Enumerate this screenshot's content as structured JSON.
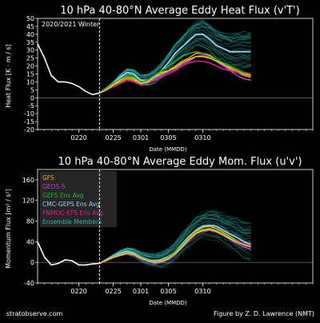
{
  "footer": {
    "left": "stratobserve.com",
    "right": "Figure by Z. D. Lawrence (NMT)"
  },
  "colors": {
    "background": "#000000",
    "axis": "#ffffff",
    "gfs": "#f5a623",
    "geos": "#c040e0",
    "gefs": "#2bb52b",
    "cmc": "#9ad0ec",
    "fnmoc": "#e0208a",
    "ensemble": "#2fb0a8",
    "gfs_ens_line": "#e8d020",
    "analysis": "#ffffff",
    "legend_bg": "#2a2a2a"
  },
  "chart_data": [
    {
      "type": "line",
      "title": "10 hPa  40-80°N  Average Eddy Heat Flux (v'T')",
      "annotation": "2020/2021 Winter",
      "xlabel": "Date (MMDD)",
      "ylabel": "Heat Flux  [K · m / s]",
      "xlim": [
        -6,
        34
      ],
      "ylim": [
        -20,
        50
      ],
      "yticks": [
        -20,
        -15,
        -10,
        -5,
        0,
        5,
        10,
        15,
        20,
        25,
        30,
        35,
        40,
        45,
        50
      ],
      "xticks": [
        {
          "x": 0,
          "label": "0220"
        },
        {
          "x": 5,
          "label": "0225"
        },
        {
          "x": 9,
          "label": "0301"
        },
        {
          "x": 13,
          "label": "0305"
        },
        {
          "x": 18,
          "label": "0310"
        }
      ],
      "forecast_start": 3,
      "analysis": {
        "x": [
          -6,
          -5,
          -4,
          -3,
          -2,
          -1,
          0,
          1,
          2,
          3
        ],
        "y": [
          34,
          25,
          14,
          10,
          10,
          9,
          7,
          4,
          2,
          3
        ]
      },
      "series": [
        {
          "key": "cmc",
          "x": [
            3,
            4,
            5,
            6,
            7,
            8,
            9,
            10,
            11,
            12,
            13,
            14,
            15,
            16,
            17,
            18,
            19,
            20,
            21,
            22,
            23,
            24,
            25
          ],
          "y": [
            3,
            6,
            9,
            13,
            16,
            15,
            11,
            11,
            13,
            17,
            22,
            28,
            32,
            36,
            40,
            40,
            37,
            33,
            31,
            29,
            29,
            29,
            29
          ]
        },
        {
          "key": "gfs",
          "x": [
            3,
            4,
            5,
            6,
            7,
            8,
            9,
            10,
            11,
            12,
            13,
            14,
            15,
            16,
            17,
            18,
            19,
            20,
            21,
            22,
            23,
            24,
            25
          ],
          "y": [
            3,
            5,
            8,
            10,
            12,
            11,
            9,
            10,
            14,
            16,
            17,
            20,
            23,
            25,
            28,
            28,
            27,
            24,
            21,
            18,
            16,
            14,
            13
          ]
        },
        {
          "key": "geos",
          "x": [
            3,
            4,
            5,
            6,
            7,
            8,
            9,
            10,
            11,
            12,
            13,
            14,
            15,
            16,
            17,
            18,
            19,
            20,
            21,
            22,
            23,
            24,
            25
          ],
          "y": [
            3,
            5,
            7,
            9,
            11,
            10,
            8,
            9,
            12,
            14,
            16,
            18,
            21,
            23,
            26,
            27,
            25,
            23,
            20,
            17,
            14,
            12,
            11
          ]
        },
        {
          "key": "gefs",
          "x": [
            3,
            4,
            5,
            6,
            7,
            8,
            9,
            10,
            11,
            12,
            13,
            14,
            15,
            16,
            17,
            18,
            19,
            20,
            21,
            22,
            23,
            24,
            25
          ],
          "y": [
            3,
            6,
            9,
            12,
            14,
            13,
            10,
            11,
            14,
            17,
            20,
            23,
            26,
            28,
            29,
            28,
            26,
            24,
            22,
            20,
            18,
            16,
            15
          ]
        },
        {
          "key": "fnmoc",
          "x": [
            3,
            4,
            5,
            6,
            7,
            8,
            9,
            10,
            11,
            12,
            13,
            14,
            15,
            16,
            17,
            18,
            19,
            20,
            21,
            22,
            23,
            24,
            25
          ],
          "y": [
            3,
            5,
            7,
            9,
            11,
            10,
            8,
            9,
            11,
            13,
            15,
            17,
            20,
            22,
            23,
            23,
            22,
            20,
            18,
            17,
            16,
            15,
            15
          ]
        },
        {
          "key": "gfs_ens_line",
          "x": [
            3,
            4,
            5,
            6,
            7,
            8,
            9,
            10,
            11,
            12,
            13,
            14,
            15,
            16,
            17,
            18,
            19,
            20,
            21,
            22,
            23,
            24,
            25
          ],
          "y": [
            3,
            5,
            8,
            11,
            13,
            12,
            9,
            10,
            13,
            15,
            17,
            19,
            22,
            24,
            26,
            26,
            25,
            23,
            21,
            19,
            17,
            15,
            14
          ]
        }
      ]
    },
    {
      "type": "line",
      "title": "10 hPa  40-80°N  Average Eddy Mom. Flux (u'v')",
      "xlabel": "Date (MMDD)",
      "ylabel": "Momentum Flux  [m² / s²]",
      "xlim": [
        -6,
        34
      ],
      "ylim": [
        -40,
        180
      ],
      "yticks": [
        -40,
        0,
        40,
        80,
        120,
        160
      ],
      "xticks": [
        {
          "x": 0,
          "label": "0220"
        },
        {
          "x": 5,
          "label": "0225"
        },
        {
          "x": 9,
          "label": "0301"
        },
        {
          "x": 13,
          "label": "0305"
        },
        {
          "x": 18,
          "label": "0310"
        }
      ],
      "forecast_start": 3,
      "legend": [
        {
          "key": "gfs",
          "label": "GFS"
        },
        {
          "key": "geos",
          "label": "GEOS-5"
        },
        {
          "key": "gefs",
          "label": "GEFS Ens Avg"
        },
        {
          "key": "cmc",
          "label": "CMC-GEPS Ens Avg"
        },
        {
          "key": "fnmoc",
          "label": "FNMOC-EFS Ens Avg"
        },
        {
          "key": "ensemble",
          "label": "Ensemble Members"
        }
      ],
      "analysis": {
        "x": [
          -6,
          -5,
          -4,
          -3,
          -2,
          -1,
          0,
          1,
          2,
          3
        ],
        "y": [
          40,
          10,
          -5,
          -2,
          5,
          3,
          -5,
          -5,
          -3,
          -2
        ]
      },
      "series": [
        {
          "key": "cmc",
          "x": [
            3,
            4,
            5,
            6,
            7,
            8,
            9,
            10,
            11,
            12,
            13,
            14,
            15,
            16,
            17,
            18,
            19,
            20,
            21,
            22,
            23,
            24,
            25
          ],
          "y": [
            -2,
            5,
            12,
            18,
            22,
            18,
            10,
            5,
            3,
            5,
            10,
            20,
            35,
            50,
            62,
            70,
            72,
            70,
            62,
            55,
            48,
            40,
            35
          ]
        },
        {
          "key": "gfs",
          "x": [
            3,
            4,
            5,
            6,
            7,
            8,
            9,
            10,
            11,
            12,
            13,
            14,
            15,
            16,
            17,
            18,
            19,
            20,
            21,
            22,
            23,
            24,
            25
          ],
          "y": [
            -2,
            4,
            10,
            14,
            18,
            15,
            8,
            3,
            0,
            2,
            8,
            18,
            32,
            48,
            60,
            68,
            70,
            66,
            58,
            50,
            42,
            35,
            30
          ]
        },
        {
          "key": "geos",
          "x": [
            3,
            4,
            5,
            6,
            7,
            8,
            9,
            10,
            11,
            12,
            13,
            14,
            15,
            16,
            17,
            18,
            19,
            20,
            21,
            22,
            23,
            24,
            25
          ],
          "y": [
            -2,
            3,
            9,
            13,
            16,
            13,
            7,
            2,
            -2,
            0,
            5,
            15,
            28,
            42,
            55,
            62,
            64,
            60,
            52,
            44,
            36,
            30,
            25
          ]
        },
        {
          "key": "gefs",
          "x": [
            3,
            4,
            5,
            6,
            7,
            8,
            9,
            10,
            11,
            12,
            13,
            14,
            15,
            16,
            17,
            18,
            19,
            20,
            21,
            22,
            23,
            24,
            25
          ],
          "y": [
            -2,
            4,
            11,
            15,
            19,
            16,
            9,
            4,
            1,
            3,
            9,
            19,
            33,
            47,
            58,
            64,
            66,
            62,
            55,
            48,
            41,
            36,
            32
          ]
        },
        {
          "key": "fnmoc",
          "x": [
            3,
            4,
            5,
            6,
            7,
            8,
            9,
            10,
            11,
            12,
            13,
            14,
            15,
            16,
            17,
            18,
            19,
            20,
            21,
            22,
            23,
            24,
            25
          ],
          "y": [
            -2,
            3,
            10,
            14,
            17,
            14,
            8,
            3,
            0,
            1,
            6,
            16,
            30,
            44,
            55,
            60,
            62,
            58,
            52,
            46,
            40,
            36,
            33
          ]
        },
        {
          "key": "gfs_ens_line",
          "x": [
            3,
            4,
            5,
            6,
            7,
            8,
            9,
            10,
            11,
            12,
            13,
            14,
            15,
            16,
            17,
            18,
            19,
            20,
            21,
            22,
            23,
            24,
            25
          ],
          "y": [
            -2,
            4,
            10,
            14,
            18,
            15,
            8,
            3,
            0,
            2,
            7,
            17,
            30,
            45,
            56,
            62,
            64,
            60,
            53,
            46,
            39,
            34,
            30
          ]
        }
      ]
    }
  ]
}
